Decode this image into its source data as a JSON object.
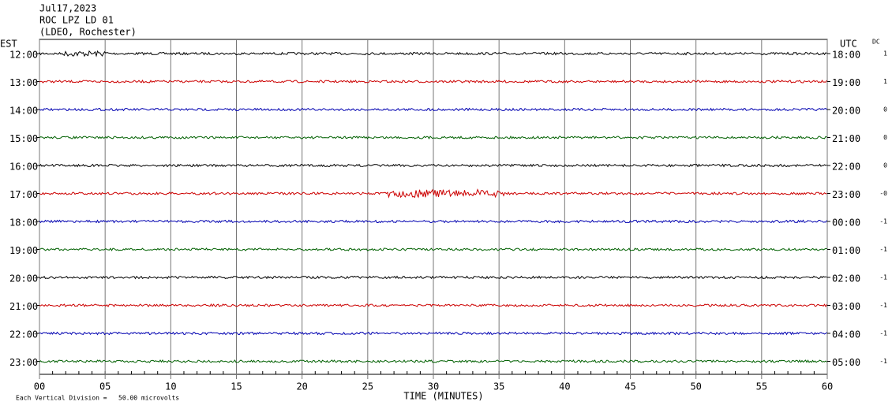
{
  "header": {
    "date": "Jul17,2023",
    "station": "ROC LPZ LD 01",
    "network": "(LDEO, Rochester)"
  },
  "left_axis": {
    "title": "EST",
    "labels": [
      "12:00",
      "13:00",
      "14:00",
      "15:00",
      "16:00",
      "17:00",
      "18:00",
      "19:00",
      "20:00",
      "21:00",
      "22:00",
      "23:00"
    ]
  },
  "right_axis": {
    "title": "UTC",
    "labels": [
      "18:00",
      "19:00",
      "20:00",
      "21:00",
      "22:00",
      "23:00",
      "00:00",
      "01:00",
      "02:00",
      "03:00",
      "04:00",
      "05:00"
    ]
  },
  "dc_column": {
    "title": "DC",
    "labels": [
      "1",
      "1",
      "0",
      "0",
      "0",
      "-0",
      "-1",
      "-1",
      "-1",
      "-1",
      "-1",
      "-1"
    ]
  },
  "trace_colors": [
    "#000000",
    "#cc0000",
    "#0000b0",
    "#006000"
  ],
  "x_axis": {
    "title": "TIME (MINUTES)",
    "lim": [
      0,
      60
    ],
    "ticks": [
      {
        "value": 0,
        "label": "00"
      },
      {
        "value": 5,
        "label": "05"
      },
      {
        "value": 10,
        "label": "10"
      },
      {
        "value": 15,
        "label": "15"
      },
      {
        "value": 20,
        "label": "20"
      },
      {
        "value": 25,
        "label": "25"
      },
      {
        "value": 30,
        "label": "30"
      },
      {
        "value": 35,
        "label": "35"
      },
      {
        "value": 40,
        "label": "40"
      },
      {
        "value": 45,
        "label": "45"
      },
      {
        "value": 50,
        "label": "50"
      },
      {
        "value": 55,
        "label": "55"
      },
      {
        "value": 60,
        "label": "60"
      }
    ]
  },
  "footer": "Each Vertical Division =   50.00 microvolts"
}
